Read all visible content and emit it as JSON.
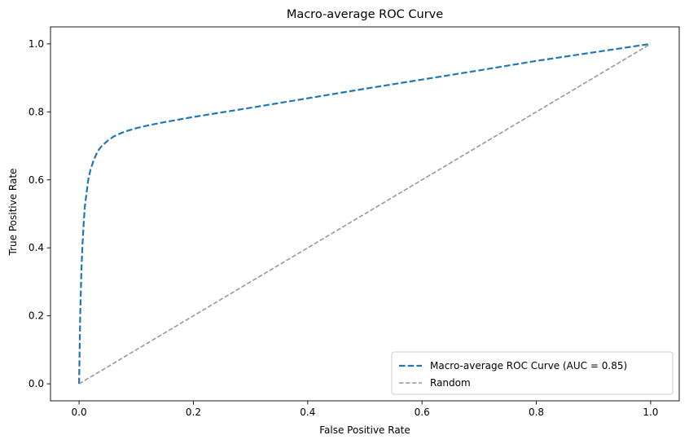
{
  "chart_data": {
    "type": "line",
    "title": "Macro-average ROC Curve",
    "xlabel": "False Positive Rate",
    "ylabel": "True Positive Rate",
    "xlim": [
      -0.05,
      1.05
    ],
    "ylim": [
      -0.05,
      1.05
    ],
    "xticks": [
      0.0,
      0.2,
      0.4,
      0.6,
      0.8,
      1.0
    ],
    "yticks": [
      0.0,
      0.2,
      0.4,
      0.6,
      0.8,
      1.0
    ],
    "xtick_labels": [
      "0.0",
      "0.2",
      "0.4",
      "0.6",
      "0.8",
      "1.0"
    ],
    "ytick_labels": [
      "0.0",
      "0.2",
      "0.4",
      "0.6",
      "0.8",
      "1.0"
    ],
    "grid": false,
    "legend_position": "lower right",
    "series": [
      {
        "name": "Macro-average ROC Curve (AUC = 0.85)",
        "color": "#1f77b4",
        "line_style": "dashed",
        "x": [
          0.0,
          0.002,
          0.004,
          0.006,
          0.008,
          0.01,
          0.013,
          0.016,
          0.02,
          0.025,
          0.03,
          0.035,
          0.04,
          0.05,
          0.06,
          0.07,
          0.08,
          0.1,
          0.12,
          0.15,
          0.2,
          0.3,
          0.4,
          0.5,
          0.6,
          0.7,
          0.8,
          0.9,
          1.0
        ],
        "y": [
          0.0,
          0.2,
          0.33,
          0.41,
          0.47,
          0.52,
          0.56,
          0.6,
          0.63,
          0.655,
          0.675,
          0.69,
          0.7,
          0.715,
          0.727,
          0.735,
          0.742,
          0.752,
          0.76,
          0.77,
          0.785,
          0.812,
          0.84,
          0.868,
          0.895,
          0.922,
          0.95,
          0.975,
          1.0
        ]
      },
      {
        "name": "Random",
        "color": "#999999",
        "line_style": "dashed",
        "x": [
          0.0,
          1.0
        ],
        "y": [
          0.0,
          1.0
        ]
      }
    ]
  }
}
